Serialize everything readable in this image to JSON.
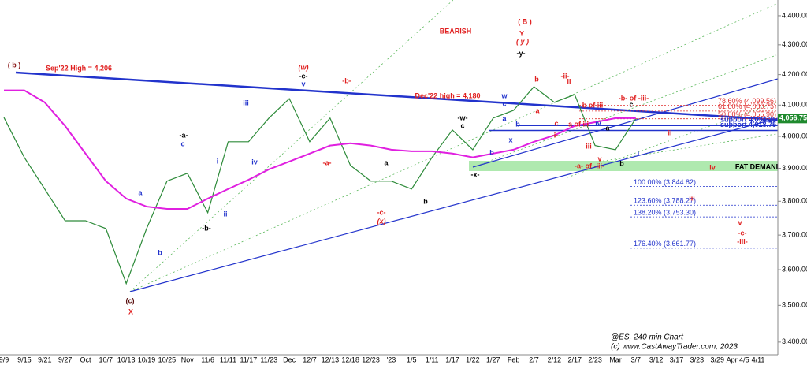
{
  "chart_data": {
    "type": "line",
    "log_scale": true,
    "categories": [
      "9/9",
      "9/15",
      "9/21",
      "9/27",
      "Oct",
      "10/7",
      "10/13",
      "10/19",
      "10/25",
      "Nov",
      "11/6",
      "11/11",
      "11/17",
      "11/23",
      "Dec",
      "12/7",
      "12/13",
      "12/18",
      "12/23",
      "'23",
      "1/5",
      "1/11",
      "1/17",
      "1/22",
      "1/27",
      "Feb",
      "2/7",
      "2/12",
      "2/17",
      "2/23",
      "Mar",
      "3/7",
      "3/12",
      "3/17",
      "3/23",
      "3/29",
      "Apr 4/5",
      "4/11"
    ],
    "series": [
      {
        "name": "ES",
        "color": "#2e8b3a",
        "values": [
          4060,
          3934,
          3837,
          3742,
          3742,
          3719,
          3561,
          3719,
          3861,
          3885,
          3766,
          3983,
          3983,
          4058,
          4121,
          3983,
          4058,
          3909,
          3861,
          3861,
          3837,
          3934,
          4020,
          3958,
          4058,
          4083,
          4160,
          4109,
          4134,
          3971,
          3958,
          4056.75,
          null,
          null,
          null,
          null,
          null,
          null
        ]
      },
      {
        "name": "MA",
        "color": "#e020e0",
        "values": [
          4148,
          4148,
          4109,
          4033,
          3946,
          3861,
          3808,
          3784,
          3777,
          3777,
          3808,
          3837,
          3865,
          3897,
          3921,
          3946,
          3971,
          3978,
          3971,
          3958,
          3953,
          3953,
          3946,
          3934,
          3946,
          3958,
          3983,
          4003,
          4033,
          4045,
          4058,
          4058,
          null,
          null,
          null,
          null,
          null,
          null
        ]
      }
    ],
    "ylim": [
      3366,
      4455
    ],
    "yticks": [
      {
        "value": 3400,
        "label": "3,400.00"
      },
      {
        "value": 3500,
        "label": "3,500.00"
      },
      {
        "value": 3600,
        "label": "3,600.00"
      },
      {
        "value": 3700,
        "label": "3,700.00"
      },
      {
        "value": 3800,
        "label": "3,800.00"
      },
      {
        "value": 3900,
        "label": "3,900.00"
      },
      {
        "value": 4000,
        "label": "4,000.00"
      },
      {
        "value": 4100,
        "label": "4,100.00"
      },
      {
        "value": 4200,
        "label": "4,200.00"
      },
      {
        "value": 4300,
        "label": "4,300.00"
      },
      {
        "value": 4400,
        "label": "4,400.00"
      }
    ],
    "current_price": {
      "value": 4056.75,
      "label": "4,056.75",
      "color": "#1f8a2e"
    },
    "levels": [
      {
        "label": "78.60% (4,099.56)",
        "value": 4099.56,
        "color": "#e03030"
      },
      {
        "label": "61.80% (4,080.75)",
        "value": 4080.75,
        "color": "#e03030"
      },
      {
        "label": "50.00% (4,055.90)",
        "value": 4055.9,
        "color": "#e03030"
      },
      {
        "label": "support 4,034.25",
        "value": 4034.25,
        "color": "#2233cc"
      },
      {
        "label": "support 4,018.75",
        "value": 4018.75,
        "color": "#2233cc"
      },
      {
        "label": "100.00% (3,844.82)",
        "value": 3844.82,
        "color": "#2233cc"
      },
      {
        "label": "123.60% (3,788.27)",
        "value": 3788.27,
        "color": "#2233cc"
      },
      {
        "label": "138.20% (3,753.30)",
        "value": 3753.3,
        "color": "#2233cc"
      },
      {
        "label": "176.40% (3,661.77)",
        "value": 3661.77,
        "color": "#2233cc"
      }
    ],
    "annotations": [
      {
        "text": "( b )",
        "color": "#8b1a1a"
      },
      {
        "text": "Sep'22 High = 4,206",
        "color": "#e02020"
      },
      {
        "text": "BEARISH",
        "color": "#e02020"
      },
      {
        "text": "( B )",
        "color": "#e02020"
      },
      {
        "text": "Y",
        "color": "#e02020"
      },
      {
        "text": "( y )",
        "color": "#e02020"
      },
      {
        "text": "-y-",
        "color": "#000000"
      },
      {
        "text": "(w)",
        "color": "#e02020"
      },
      {
        "text": "-c-",
        "color": "#000000"
      },
      {
        "text": "v",
        "color": "#2233cc"
      },
      {
        "text": "-b-",
        "color": "#e02020"
      },
      {
        "text": "iii",
        "color": "#2233cc"
      },
      {
        "text": "-a-",
        "color": "#000000"
      },
      {
        "text": "c",
        "color": "#2233cc"
      },
      {
        "text": "i",
        "color": "#2233cc"
      },
      {
        "text": "iv",
        "color": "#2233cc"
      },
      {
        "text": "-a-",
        "color": "#e02020"
      },
      {
        "text": "a",
        "color": "#000000"
      },
      {
        "text": "b",
        "color": "#000000"
      },
      {
        "text": "-c-",
        "color": "#e02020"
      },
      {
        "text": "(x)",
        "color": "#e02020"
      },
      {
        "text": "-b-",
        "color": "#000000"
      },
      {
        "text": "ii",
        "color": "#2233cc"
      },
      {
        "text": "a",
        "color": "#2233cc"
      },
      {
        "text": "b",
        "color": "#2233cc"
      },
      {
        "text": "(c)",
        "color": "#5a1010"
      },
      {
        "text": "X",
        "color": "#e02020"
      },
      {
        "text": "-w-",
        "color": "#000000"
      },
      {
        "text": "c",
        "color": "#000000"
      },
      {
        "text": "-x-",
        "color": "#000000"
      },
      {
        "text": "b",
        "color": "#2233cc"
      },
      {
        "text": "a",
        "color": "#2233cc"
      },
      {
        "text": "w",
        "color": "#2233cc"
      },
      {
        "text": "c",
        "color": "#2233cc"
      },
      {
        "text": "b",
        "color": "#2233cc"
      },
      {
        "text": "x",
        "color": "#2233cc"
      },
      {
        "text": "Dec'22 high = 4,180",
        "color": "#e02020"
      },
      {
        "text": "b",
        "color": "#e02020"
      },
      {
        "text": "-ii-",
        "color": "#e02020"
      },
      {
        "text": "ii",
        "color": "#e02020"
      },
      {
        "text": "a",
        "color": "#e02020"
      },
      {
        "text": "b of iii",
        "color": "#e02020"
      },
      {
        "text": "c",
        "color": "#e02020"
      },
      {
        "text": "a of iii",
        "color": "#e02020"
      },
      {
        "text": "-i-",
        "color": "#e02020"
      },
      {
        "text": "iv",
        "color": "#2233cc"
      },
      {
        "text": "a",
        "color": "#000000"
      },
      {
        "text": "iii",
        "color": "#e02020"
      },
      {
        "text": "v",
        "color": "#e02020"
      },
      {
        "text": "-a- of -iii-",
        "color": "#e02020"
      },
      {
        "text": "b",
        "color": "#000000"
      },
      {
        "text": "i",
        "color": "#2233cc"
      },
      {
        "text": "c",
        "color": "#000000"
      },
      {
        "text": "-b- of -iii-",
        "color": "#e02020"
      },
      {
        "text": "ii",
        "color": "#e02020"
      },
      {
        "text": "iv",
        "color": "#e02020"
      },
      {
        "text": "iii",
        "color": "#e02020"
      },
      {
        "text": "v",
        "color": "#e02020"
      },
      {
        "text": "-c-",
        "color": "#e02020"
      },
      {
        "text": "-iii-",
        "color": "#e02020"
      },
      {
        "text": "FAT DEMAND",
        "color": "#000000"
      }
    ],
    "footer": [
      "@ES, 240 min Chart",
      "(c) www.CastAwayTrader.com, 2023"
    ]
  }
}
